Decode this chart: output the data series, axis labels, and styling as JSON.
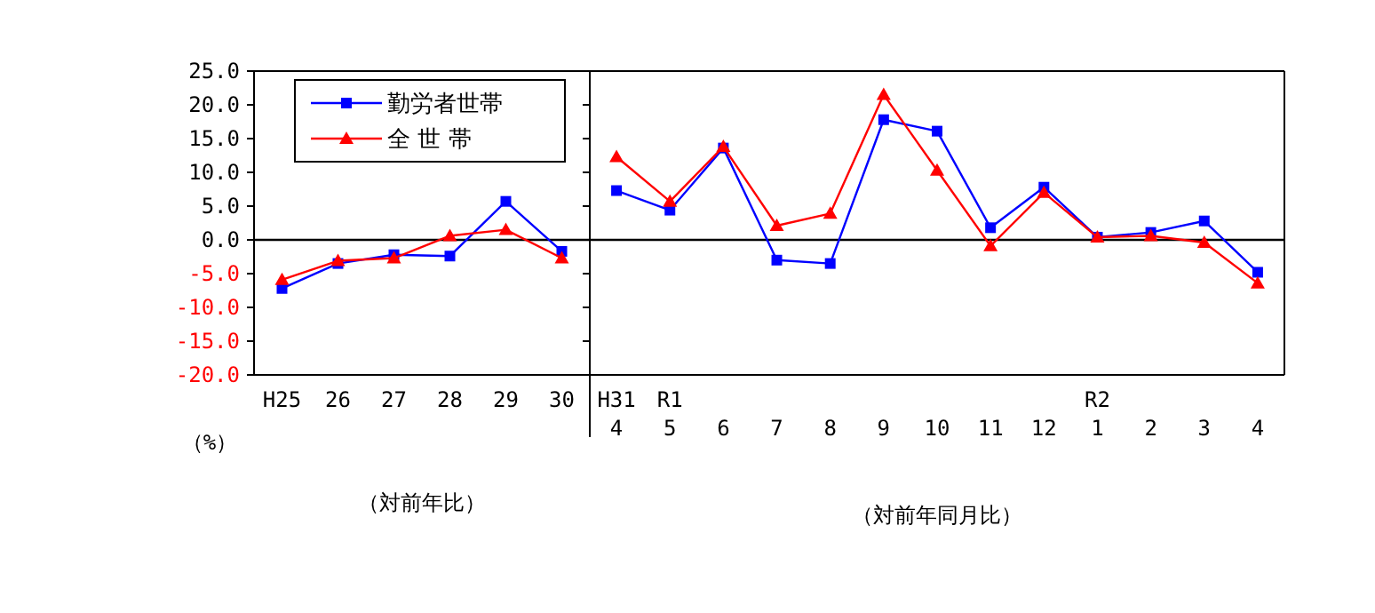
{
  "chart_data": [
    {
      "type": "line",
      "categories": [
        "H25",
        "26",
        "27",
        "28",
        "29",
        "30"
      ],
      "ylabel": "（%）",
      "annotations": [
        "（対前年比）"
      ],
      "ylim": [
        -20,
        25
      ],
      "yticks": [
        {
          "value": -20,
          "label": "-20.0"
        },
        {
          "value": -15,
          "label": "-15.0"
        },
        {
          "value": -10,
          "label": "-10.0"
        },
        {
          "value": -5,
          "label": "-5.0"
        },
        {
          "value": 0,
          "label": "0.0"
        },
        {
          "value": 5,
          "label": "5.0"
        },
        {
          "value": 10,
          "label": "10.0"
        },
        {
          "value": 15,
          "label": "15.0"
        },
        {
          "value": 20,
          "label": "20.0"
        },
        {
          "value": 25,
          "label": "25.0"
        }
      ],
      "legend": "top",
      "ref_lines": [
        {
          "axis": "y",
          "value": 0
        }
      ],
      "series": [
        {
          "name": "勤労者世帯",
          "color": "#0000ff",
          "marker": "square",
          "values": [
            -7.2,
            -3.5,
            -2.2,
            -2.4,
            5.7,
            -1.7
          ]
        },
        {
          "name": "全 世 帯",
          "color": "#ff0000",
          "marker": "triangle",
          "values": [
            -5.9,
            -3.1,
            -2.7,
            0.6,
            1.5,
            -2.7
          ]
        }
      ]
    },
    {
      "type": "line",
      "categories": [
        "H31\n4",
        "R1\n5",
        "6",
        "7",
        "8",
        "9",
        "10",
        "11",
        "12",
        "R2\n1",
        "2",
        "3",
        "4"
      ],
      "annotations": [
        "（対前年同月比）"
      ],
      "ylim": [
        -20,
        25
      ],
      "yticks": [
        {
          "value": -20,
          "label": null
        },
        {
          "value": -15,
          "label": null
        },
        {
          "value": -10,
          "label": null
        },
        {
          "value": -5,
          "label": null
        },
        {
          "value": 0,
          "label": null
        },
        {
          "value": 5,
          "label": null
        },
        {
          "value": 10,
          "label": null
        },
        {
          "value": 15,
          "label": null
        },
        {
          "value": 20,
          "label": null
        },
        {
          "value": 25,
          "label": null
        }
      ],
      "tick_labels": "x",
      "ref_lines": [
        {
          "axis": "y",
          "value": 0
        }
      ],
      "series": [
        {
          "color": "#0000ff",
          "marker": "square",
          "values": [
            7.3,
            4.4,
            13.6,
            -3.0,
            -3.5,
            17.8,
            16.1,
            1.8,
            7.8,
            0.4,
            1.1,
            2.8,
            -4.8
          ]
        },
        {
          "color": "#ff0000",
          "marker": "triangle",
          "values": [
            12.3,
            5.7,
            13.8,
            2.1,
            3.9,
            21.5,
            10.3,
            -0.9,
            7.0,
            0.4,
            0.6,
            -0.4,
            -6.4
          ]
        }
      ]
    }
  ]
}
